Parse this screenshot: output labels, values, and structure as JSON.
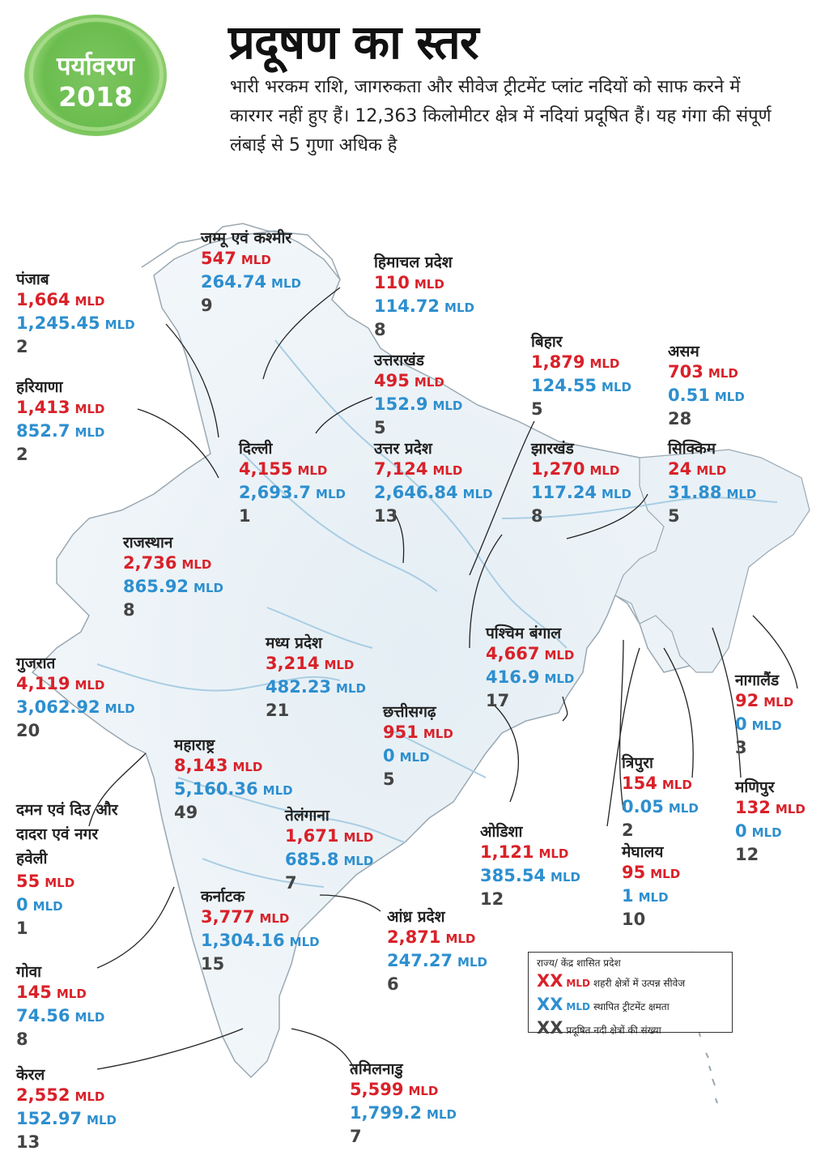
{
  "badge": {
    "line1": "पर्यावरण",
    "line2": "2018"
  },
  "title": "प्रदूषण का स्तर",
  "subtitle": "भारी भरकम राशि, जागरुकता और सीवेज ट्रीटमेंट प्लांट नदियों को साफ करने में कारगर नहीं हुए हैं। 12,363 किलोमीटर क्षेत्र में नदियां प्रदूषित हैं। यह गंगा की संपूर्ण लंबाई से 5 गुणा अधिक है",
  "unit": "MLD",
  "colors": {
    "generated": "#d92129",
    "capacity": "#2d8fcf",
    "count": "#444444",
    "badge": "#6bbd4f",
    "water": "#a9cde3"
  },
  "states": [
    {
      "id": "jk",
      "name": "जम्मू एवं कश्मीर",
      "generated": "547",
      "capacity": "264.74",
      "stretches": "9"
    },
    {
      "id": "hp",
      "name": "हिमाचल प्रदेश",
      "generated": "110",
      "capacity": "114.72",
      "stretches": "8"
    },
    {
      "id": "pb",
      "name": "पंजाब",
      "generated": "1,664",
      "capacity": "1,245.45",
      "stretches": "2"
    },
    {
      "id": "hr",
      "name": "हरियाणा",
      "generated": "1,413",
      "capacity": "852.7",
      "stretches": "2"
    },
    {
      "id": "uk",
      "name": "उत्तराखंड",
      "generated": "495",
      "capacity": "152.9",
      "stretches": "5"
    },
    {
      "id": "br",
      "name": "बिहार",
      "generated": "1,879",
      "capacity": "124.55",
      "stretches": "5"
    },
    {
      "id": "as",
      "name": "असम",
      "generated": "703",
      "capacity": "0.51",
      "stretches": "28"
    },
    {
      "id": "dl",
      "name": "दिल्ली",
      "generated": "4,155",
      "capacity": "2,693.7",
      "stretches": "1"
    },
    {
      "id": "up",
      "name": "उत्तर प्रदेश",
      "generated": "7,124",
      "capacity": "2,646.84",
      "stretches": "13"
    },
    {
      "id": "jh",
      "name": "झारखंड",
      "generated": "1,270",
      "capacity": "117.24",
      "stretches": "8"
    },
    {
      "id": "sk",
      "name": "सिक्किम",
      "generated": "24",
      "capacity": "31.88",
      "stretches": "5"
    },
    {
      "id": "rj",
      "name": "राजस्थान",
      "generated": "2,736",
      "capacity": "865.92",
      "stretches": "8"
    },
    {
      "id": "wb",
      "name": "पश्चिम बंगाल",
      "generated": "4,667",
      "capacity": "416.9",
      "stretches": "17"
    },
    {
      "id": "mp",
      "name": "मध्य प्रदेश",
      "generated": "3,214",
      "capacity": "482.23",
      "stretches": "21"
    },
    {
      "id": "gj",
      "name": "गुजरात",
      "generated": "4,119",
      "capacity": "3,062.92",
      "stretches": "20"
    },
    {
      "id": "nl",
      "name": "नागालैंड",
      "generated": "92",
      "capacity": "0",
      "stretches": "3"
    },
    {
      "id": "cg",
      "name": "छत्तीसगढ़",
      "generated": "951",
      "capacity": "0",
      "stretches": "5"
    },
    {
      "id": "mh",
      "name": "महाराष्ट्र",
      "generated": "8,143",
      "capacity": "5,160.36",
      "stretches": "49"
    },
    {
      "id": "tr",
      "name": "त्रिपुरा",
      "generated": "154",
      "capacity": "0.05",
      "stretches": "2"
    },
    {
      "id": "mn",
      "name": "मणिपुर",
      "generated": "132",
      "capacity": "0",
      "stretches": "12"
    },
    {
      "id": "dd",
      "name_lines": [
        "दमन एवं दिउ और",
        "दादरा एवं नगर",
        "हवेली"
      ],
      "generated": "55",
      "capacity": "0",
      "stretches": "1"
    },
    {
      "id": "tg",
      "name": "तेलंगाना",
      "generated": "1,671",
      "capacity": "685.8",
      "stretches": "7"
    },
    {
      "id": "od",
      "name": "ओडिशा",
      "generated": "1,121",
      "capacity": "385.54",
      "stretches": "12"
    },
    {
      "id": "ml",
      "name": "मेघालय",
      "generated": "95",
      "capacity": "1",
      "stretches": "10"
    },
    {
      "id": "ka",
      "name": "कर्नाटक",
      "generated": "3,777",
      "capacity": "1,304.16",
      "stretches": "15"
    },
    {
      "id": "ap",
      "name": "आंध्र प्रदेश",
      "generated": "2,871",
      "capacity": "247.27",
      "stretches": "6"
    },
    {
      "id": "ga",
      "name": "गोवा",
      "generated": "145",
      "capacity": "74.56",
      "stretches": "8"
    },
    {
      "id": "tn",
      "name": "तमिलनाडु",
      "generated": "5,599",
      "capacity": "1,799.2",
      "stretches": "7"
    },
    {
      "id": "kl",
      "name": "केरल",
      "generated": "2,552",
      "capacity": "152.97",
      "stretches": "13"
    }
  ],
  "legend": {
    "title": "राज्य/ केंद्र शासित प्रदेश",
    "xx": "XX",
    "unit": "MLD",
    "generated_label": "शहरी क्षेत्रों में उत्पन्न सीवेज",
    "capacity_label": "स्थापित ट्रीटमेंट क्षमता",
    "count_label": "प्रदूषित नदी क्षेत्रों की संख्या"
  }
}
